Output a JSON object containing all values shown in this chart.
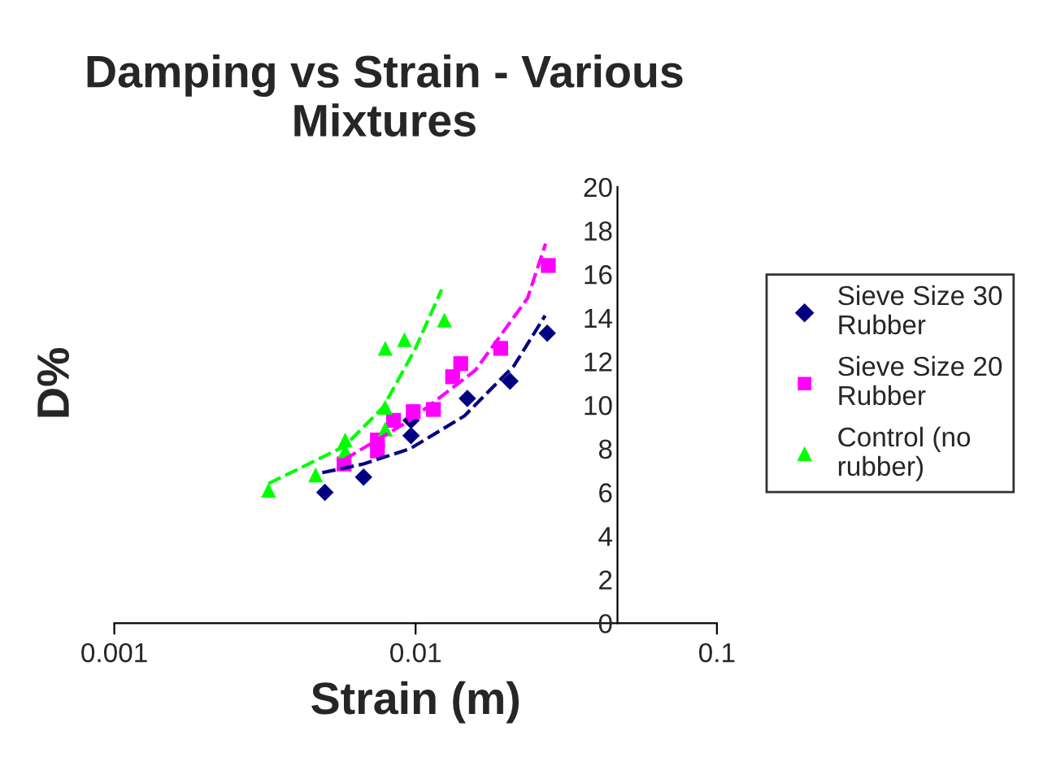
{
  "chart_data": {
    "type": "scatter",
    "title": "Damping vs Strain - Various Mixtures",
    "xlabel": "Strain (m)",
    "ylabel": "D%",
    "log": "x",
    "xlim": [
      0.001,
      0.1
    ],
    "xticks": [
      0.001,
      0.01,
      0.1
    ],
    "ylim": [
      0,
      20
    ],
    "yticks": [
      0,
      2,
      4,
      6,
      8,
      10,
      12,
      14,
      16,
      18,
      20
    ],
    "grid": false,
    "legend": "right",
    "series": [
      {
        "name": "Sieve Size 30 Rubber",
        "color": "#000080",
        "marker": "diamond",
        "x": [
          0.005,
          0.00672,
          0.00966,
          0.00966,
          0.01485,
          0.02057,
          0.02735
        ],
        "values": [
          6.0,
          6.7,
          8.6,
          9.3,
          10.3,
          11.1,
          13.3
        ]
      },
      {
        "name": "Sieve Size 20 Rubber",
        "color": "#ff00ff",
        "marker": "square",
        "x": [
          0.00579,
          0.00747,
          0.00747,
          0.00845,
          0.00982,
          0.01146,
          0.01327,
          0.01412,
          0.01916,
          0.02757
        ],
        "values": [
          7.3,
          7.9,
          8.4,
          9.3,
          9.7,
          9.8,
          11.3,
          11.9,
          12.6,
          16.4
        ]
      },
      {
        "name": "Control (no rubber)",
        "color": "#00ff00",
        "marker": "triangle",
        "x": [
          0.00325,
          0.00466,
          0.00584,
          0.00584,
          0.00793,
          0.00793,
          0.00793,
          0.00918,
          0.01246
        ],
        "values": [
          6.1,
          6.8,
          7.9,
          8.4,
          8.9,
          9.9,
          12.6,
          13.0,
          13.9
        ]
      },
      {
        "type": "line",
        "color": "#000080",
        "line_style": "dashed",
        "marker": "none",
        "x": [
          0.0049,
          0.00672,
          0.00958,
          0.01452,
          0.0212,
          0.0269
        ],
        "values": [
          6.9,
          7.3,
          8.0,
          9.5,
          11.8,
          14.1
        ]
      },
      {
        "type": "line",
        "color": "#ff00ff",
        "line_style": "dashed",
        "marker": "none",
        "x": [
          0.00579,
          0.00958,
          0.0158,
          0.02353,
          0.027
        ],
        "values": [
          7.5,
          9.3,
          11.6,
          14.9,
          17.4
        ]
      },
      {
        "type": "line",
        "color": "#00ff00",
        "line_style": "dashed",
        "marker": "none",
        "x": [
          0.00325,
          0.00579,
          0.0078,
          0.00999,
          0.0122
        ],
        "values": [
          6.4,
          8.1,
          9.9,
          12.6,
          15.3
        ]
      }
    ]
  }
}
